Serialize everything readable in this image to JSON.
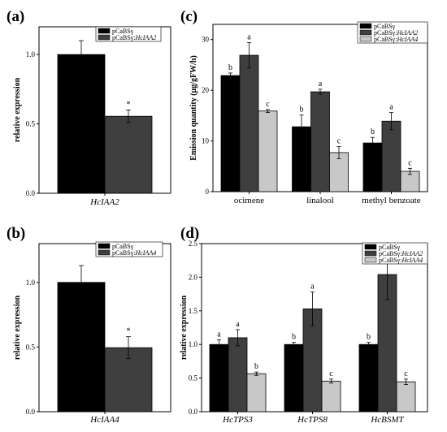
{
  "colors": {
    "s0": "#000000",
    "s1": "#3f3f3f",
    "s2": "#c8c8c8"
  },
  "chart_data": [
    {
      "panel": "(a)",
      "type": "bar",
      "ylabel": "relative expression",
      "ylim": [
        0,
        1.2
      ],
      "yticks": [
        0.0,
        0.5,
        1.0
      ],
      "tick_labels": [
        "0.0",
        "0.5",
        "1.0"
      ],
      "categories": [
        "HcIAA2"
      ],
      "cat_italic": true,
      "legend": [
        "pCaBSγ",
        "pCaBSγ:HcIAA2"
      ],
      "series": [
        {
          "name": "pCaBSγ",
          "values": [
            1.0
          ],
          "errors": [
            0.1
          ],
          "labels": [
            ""
          ]
        },
        {
          "name": "pCaBSγ:HcIAA2",
          "values": [
            0.555
          ],
          "errors": [
            0.045
          ],
          "labels": [
            "*"
          ]
        }
      ]
    },
    {
      "panel": "(c)",
      "type": "bar",
      "ylabel": "Emission quantity (μg/gFW/h)",
      "ylim": [
        0,
        33
      ],
      "yticks": [
        0,
        10,
        20,
        30
      ],
      "tick_labels": [
        "0",
        "10",
        "20",
        "30"
      ],
      "categories": [
        "ocimene",
        "linalool",
        "methyl benzoate"
      ],
      "cat_italic": false,
      "legend": [
        "pCaBSγ",
        "pCaBSγ:HcIAA2",
        "pCaBSγ:HcIAA4"
      ],
      "series": [
        {
          "name": "pCaBSγ",
          "values": [
            22.9,
            12.8,
            9.6
          ],
          "errors": [
            0.5,
            2.3,
            1.1
          ],
          "labels": [
            "b",
            "b",
            "b"
          ]
        },
        {
          "name": "pCaBSγ:HcIAA2",
          "values": [
            26.9,
            19.7,
            13.9
          ],
          "errors": [
            2.5,
            0.5,
            1.7
          ],
          "labels": [
            "a",
            "a",
            "a"
          ]
        },
        {
          "name": "pCaBSγ:HcIAA4",
          "values": [
            15.9,
            7.7,
            4.0
          ],
          "errors": [
            0.3,
            1.2,
            0.6
          ],
          "labels": [
            "c",
            "c",
            "c"
          ]
        }
      ]
    },
    {
      "panel": "(b)",
      "type": "bar",
      "ylabel": "relative expression",
      "ylim": [
        0,
        1.3
      ],
      "yticks": [
        0.0,
        0.5,
        1.0
      ],
      "tick_labels": [
        "0.0",
        "0.5",
        "1.0"
      ],
      "categories": [
        "HcIAA4"
      ],
      "cat_italic": true,
      "legend": [
        "pCaBSγ",
        "pCaBSγ:HcIAA4"
      ],
      "series": [
        {
          "name": "pCaBSγ",
          "values": [
            1.0
          ],
          "errors": [
            0.13
          ],
          "labels": [
            ""
          ]
        },
        {
          "name": "pCaBSγ:HcIAA4",
          "values": [
            0.495
          ],
          "errors": [
            0.085
          ],
          "labels": [
            "*"
          ]
        }
      ]
    },
    {
      "panel": "(d)",
      "type": "bar",
      "ylabel": "relative expression",
      "ylim": [
        0,
        2.5
      ],
      "yticks": [
        0.0,
        0.5,
        1.0,
        1.5,
        2.0,
        2.5
      ],
      "tick_labels": [
        "0.0",
        "0.5",
        "1.0",
        "1.5",
        "2.0",
        "2.5"
      ],
      "categories": [
        "HcTPS3",
        "HcTPS8",
        "HcBSMT"
      ],
      "cat_italic": true,
      "legend": [
        "pCaBSγ",
        "pCaBSγ:HcIAA2",
        "pCaBSγ:HcIAA4"
      ],
      "series": [
        {
          "name": "pCaBSγ",
          "values": [
            1.0,
            1.0,
            1.0
          ],
          "errors": [
            0.07,
            0.03,
            0.03
          ],
          "labels": [
            "a",
            "b",
            "b"
          ]
        },
        {
          "name": "pCaBSγ:HcIAA2",
          "values": [
            1.1,
            1.53,
            2.04
          ],
          "errors": [
            0.12,
            0.25,
            0.37
          ],
          "labels": [
            "a",
            "a",
            "a"
          ]
        },
        {
          "name": "pCaBSγ:HcIAA4",
          "values": [
            0.565,
            0.455,
            0.445
          ],
          "errors": [
            0.025,
            0.03,
            0.04
          ],
          "labels": [
            "b",
            "c",
            "c"
          ]
        }
      ]
    }
  ]
}
